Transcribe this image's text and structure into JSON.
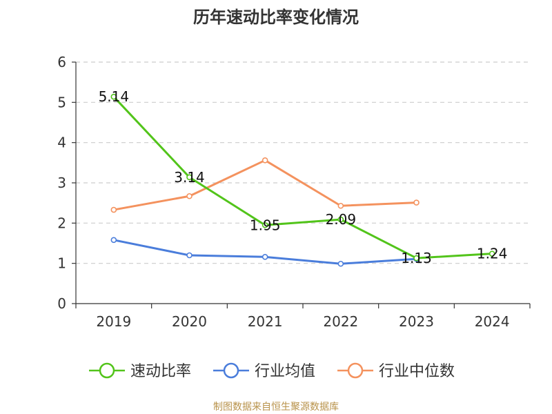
{
  "chart_data": {
    "type": "line",
    "title": "历年速动比率变化情况",
    "categories": [
      "2019",
      "2020",
      "2021",
      "2022",
      "2023",
      "2024"
    ],
    "ylim": [
      0,
      6
    ],
    "yticks": [
      0,
      1,
      2,
      3,
      4,
      5,
      6
    ],
    "grid": true,
    "legend_position": "bottom",
    "series": [
      {
        "name": "速动比率",
        "color": "#52c41a",
        "values": [
          5.14,
          3.14,
          1.95,
          2.09,
          1.13,
          1.24
        ],
        "labels": [
          "5.14",
          "3.14",
          "1.95",
          "2.09",
          "1.13",
          "1.24"
        ]
      },
      {
        "name": "行业均值",
        "color": "#4a7ddb",
        "values": [
          1.58,
          1.2,
          1.16,
          0.99,
          1.11,
          null
        ]
      },
      {
        "name": "行业中位数",
        "color": "#f4925e",
        "values": [
          2.33,
          2.67,
          3.56,
          2.43,
          2.51,
          null
        ]
      }
    ],
    "source": "制图数据来自恒生聚源数据库"
  }
}
